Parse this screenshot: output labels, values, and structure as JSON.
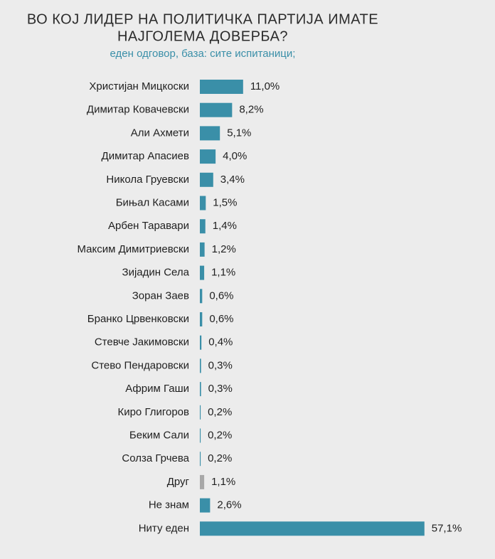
{
  "chart_data": {
    "type": "hbar",
    "title": [
      "ВО КОЈ ЛИДЕР НА ПОЛИТИЧКА ПАРТИЈА ИМАТЕ",
      "НАЈГОЛЕМА ДОВЕРБА?"
    ],
    "subtitle": "еден одговор, база: сите испитаници;",
    "categories": [
      "Христијан Мицкоски",
      "Димитар Ковачевски",
      "Али Ахмети",
      "Димитар Апасиев",
      "Никола Груевски",
      "Бињал Касами",
      "Арбен Таравари",
      "Максим Димитриевски",
      "Зијадин Села",
      "Зоран Заев",
      "Бранко Црвенковски",
      "Стевче Јакимовски",
      "Стево Пендаровски",
      "Африм Гаши",
      "Киро Глигоров",
      "Беким Сали",
      "Солза Грчева",
      "Друг",
      "Не знам",
      "Ниту еден"
    ],
    "values": [
      11.0,
      8.2,
      5.1,
      4.0,
      3.4,
      1.5,
      1.4,
      1.2,
      1.1,
      0.6,
      0.6,
      0.4,
      0.3,
      0.3,
      0.2,
      0.2,
      0.2,
      1.1,
      2.6,
      57.1
    ],
    "value_labels": [
      "11,0%",
      "8,2%",
      "5,1%",
      "4,0%",
      "3,4%",
      "1,5%",
      "1,4%",
      "1,2%",
      "1,1%",
      "0,6%",
      "0,6%",
      "0,4%",
      "0,3%",
      "0,3%",
      "0,2%",
      "0,2%",
      "0,2%",
      "1,1%",
      "2,6%",
      "57,1%"
    ],
    "colors": [
      "#3a8fa8",
      "#3a8fa8",
      "#3a8fa8",
      "#3a8fa8",
      "#3a8fa8",
      "#3a8fa8",
      "#3a8fa8",
      "#3a8fa8",
      "#3a8fa8",
      "#3a8fa8",
      "#3a8fa8",
      "#3a8fa8",
      "#3a8fa8",
      "#3a8fa8",
      "#3a8fa8",
      "#3a8fa8",
      "#3a8fa8",
      "#a8a8a8",
      "#3a8fa8",
      "#3a8fa8"
    ]
  }
}
